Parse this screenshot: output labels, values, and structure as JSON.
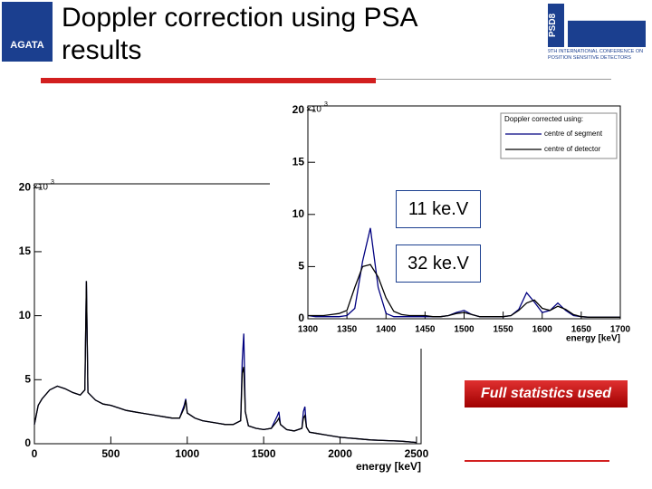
{
  "header": {
    "title": "Doppler correction using PSA results",
    "logo_left": "AGATA",
    "logo_right_title": "PSD8",
    "logo_right_subtitle": "9TH INTERNATIONAL CONFERENCE ON POSITION SENSITIVE DETECTORS"
  },
  "annotations": [
    "11 ke.V",
    "32 ke.V",
    "Full statistics used"
  ],
  "chart_data": [
    {
      "type": "line",
      "x_label": "energy [keV]",
      "y_scale": {
        "base": "×10",
        "exponent": "3"
      },
      "x": [
        0,
        25,
        50,
        100,
        150,
        200,
        250,
        300,
        330,
        340,
        350,
        400,
        450,
        500,
        550,
        600,
        650,
        700,
        750,
        800,
        850,
        900,
        950,
        980,
        990,
        1000,
        1050,
        1100,
        1150,
        1200,
        1250,
        1300,
        1350,
        1360,
        1370,
        1380,
        1400,
        1450,
        1500,
        1550,
        1590,
        1600,
        1610,
        1650,
        1700,
        1750,
        1760,
        1770,
        1780,
        1800,
        1850,
        1900,
        1950,
        2000,
        2100,
        2200,
        2300,
        2400,
        2500
      ],
      "series": [
        {
          "color": "#000080",
          "values": [
            1.5,
            3.0,
            3.5,
            4.2,
            4.5,
            4.3,
            4.0,
            3.8,
            4.2,
            12.7,
            4.0,
            3.4,
            3.1,
            3.0,
            2.8,
            2.6,
            2.5,
            2.4,
            2.3,
            2.2,
            2.1,
            2.0,
            2.0,
            3.0,
            3.5,
            2.4,
            2.0,
            1.8,
            1.7,
            1.6,
            1.5,
            1.5,
            1.8,
            6.5,
            8.6,
            2.5,
            1.4,
            1.2,
            1.1,
            1.2,
            2.2,
            2.5,
            1.5,
            1.1,
            1.0,
            1.2,
            2.5,
            2.9,
            1.3,
            0.9,
            0.8,
            0.7,
            0.6,
            0.5,
            0.4,
            0.3,
            0.25,
            0.2,
            0.1
          ]
        },
        {
          "color": "#000000",
          "values": [
            1.5,
            3.0,
            3.5,
            4.2,
            4.5,
            4.3,
            4.0,
            3.8,
            4.2,
            12.7,
            4.0,
            3.4,
            3.1,
            3.0,
            2.8,
            2.6,
            2.5,
            2.4,
            2.3,
            2.2,
            2.1,
            2.0,
            2.0,
            2.8,
            3.4,
            2.4,
            2.0,
            1.8,
            1.7,
            1.6,
            1.5,
            1.5,
            1.8,
            5.5,
            6.0,
            2.5,
            1.4,
            1.2,
            1.1,
            1.2,
            1.8,
            2.0,
            1.5,
            1.1,
            1.0,
            1.2,
            2.0,
            2.2,
            1.3,
            0.9,
            0.8,
            0.7,
            0.6,
            0.5,
            0.4,
            0.3,
            0.25,
            0.2,
            0.1
          ]
        }
      ],
      "xlim": [
        0,
        2530
      ],
      "ylim": [
        0,
        20.3
      ],
      "xticks": [
        0,
        500,
        1000,
        1500,
        2000,
        2500
      ],
      "yticks": [
        0,
        5,
        10,
        15,
        20
      ]
    },
    {
      "type": "line",
      "x_label": "energy [keV]",
      "y_scale": {
        "base": "×10",
        "exponent": "3"
      },
      "legend_title": "Doppler corrected using:",
      "legend": "upper right",
      "x": [
        1300,
        1310,
        1320,
        1330,
        1340,
        1350,
        1360,
        1370,
        1380,
        1390,
        1400,
        1410,
        1420,
        1430,
        1440,
        1450,
        1460,
        1470,
        1480,
        1490,
        1500,
        1510,
        1520,
        1530,
        1540,
        1550,
        1560,
        1570,
        1580,
        1590,
        1600,
        1610,
        1620,
        1630,
        1640,
        1650,
        1660,
        1670,
        1680,
        1690,
        1700
      ],
      "series": [
        {
          "name": "centre of segment",
          "color": "#000080",
          "values": [
            0.3,
            0.2,
            0.2,
            0.2,
            0.2,
            0.3,
            1.0,
            5.5,
            8.7,
            3.0,
            0.5,
            0.2,
            0.2,
            0.2,
            0.2,
            0.2,
            0.2,
            0.2,
            0.3,
            0.6,
            0.8,
            0.4,
            0.2,
            0.2,
            0.2,
            0.2,
            0.3,
            0.9,
            2.5,
            1.6,
            0.6,
            0.8,
            1.5,
            0.8,
            0.3,
            0.2,
            0.15,
            0.15,
            0.15,
            0.15,
            0.15
          ]
        },
        {
          "name": "centre of detector",
          "color": "#000000",
          "values": [
            0.3,
            0.3,
            0.3,
            0.4,
            0.5,
            0.8,
            3.0,
            5.0,
            5.2,
            4.0,
            2.0,
            0.7,
            0.4,
            0.3,
            0.3,
            0.3,
            0.2,
            0.2,
            0.3,
            0.5,
            0.6,
            0.4,
            0.2,
            0.2,
            0.2,
            0.2,
            0.3,
            0.8,
            1.5,
            1.8,
            1.0,
            0.8,
            1.2,
            0.9,
            0.4,
            0.2,
            0.15,
            0.15,
            0.15,
            0.15,
            0.15
          ]
        }
      ],
      "xlim": [
        1300,
        1700
      ],
      "ylim": [
        0,
        20.4
      ],
      "xticks": [
        1300,
        1350,
        1400,
        1450,
        1500,
        1550,
        1600,
        1650,
        1700
      ],
      "yticks": [
        0,
        5,
        10,
        15,
        20
      ]
    }
  ]
}
